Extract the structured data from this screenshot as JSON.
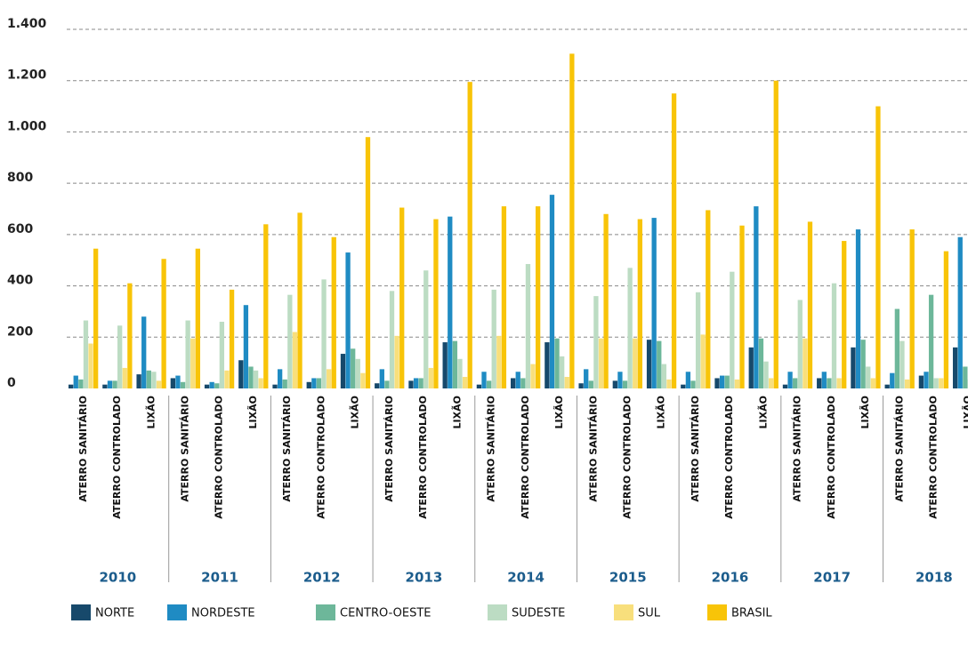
{
  "chart_data": {
    "type": "bar",
    "categories": [
      "ATERRO SANITÁRIO",
      "ATERRO CONTROLADO",
      "LIXÃO",
      "ATERRO SANITÁRIO",
      "ATERRO CONTROLADO",
      "LIXÃO",
      "ATERRO SANITÁRIO",
      "ATERRO CONTROLADO",
      "LIXÃO",
      "ATERRO SANITÁRIO",
      "ATERRO CONTROLADO",
      "LIXÃO",
      "ATERRO SANITÁRIO",
      "ATERRO CONTROLADO",
      "LIXÃO",
      "ATERRO SANITÁRIO",
      "ATERRO CONTROLADO",
      "LIXÃO",
      "ATERRO SANITÁRIO",
      "ATERRO CONTROLADO",
      "LIXÃO",
      "ATERRO SANITÁRIO",
      "ATERRO CONTROLADO",
      "LIXÃO",
      "ATERRO SANITÁRIO",
      "ATERRO CONTROLADO",
      "LIXÃO"
    ],
    "groups": [
      "2010",
      "2011",
      "2012",
      "2013",
      "2014",
      "2015",
      "2016",
      "2017",
      "2018"
    ],
    "series": [
      {
        "name": "NORTE",
        "color": "#17496b",
        "values": [
          15,
          15,
          55,
          40,
          15,
          110,
          15,
          25,
          135,
          20,
          30,
          180,
          15,
          40,
          180,
          20,
          30,
          190,
          15,
          40,
          160,
          15,
          40,
          160,
          15,
          50,
          160
        ]
      },
      {
        "name": "NORDESTE",
        "color": "#1f8bc3",
        "values": [
          50,
          30,
          280,
          50,
          25,
          325,
          75,
          40,
          530,
          75,
          40,
          670,
          65,
          65,
          755,
          75,
          65,
          665,
          65,
          50,
          710,
          65,
          65,
          620,
          60,
          65,
          590
        ]
      },
      {
        "name": "CENTRO-OESTE",
        "color": "#6db79a",
        "values": [
          35,
          30,
          70,
          25,
          20,
          85,
          35,
          40,
          155,
          30,
          40,
          185,
          30,
          40,
          195,
          30,
          30,
          185,
          30,
          50,
          195,
          40,
          40,
          190,
          310,
          365,
          85
        ]
      },
      {
        "name": "SUDESTE",
        "color": "#bcdcc3",
        "values": [
          265,
          245,
          65,
          265,
          260,
          70,
          365,
          425,
          115,
          380,
          460,
          115,
          385,
          485,
          125,
          360,
          470,
          95,
          375,
          455,
          105,
          345,
          410,
          85,
          185,
          40,
          35
        ]
      },
      {
        "name": "SUL",
        "color": "#f8df7c",
        "values": [
          175,
          80,
          30,
          195,
          70,
          40,
          220,
          75,
          60,
          205,
          80,
          45,
          205,
          95,
          45,
          195,
          195,
          35,
          210,
          35,
          40,
          195,
          40,
          40,
          35,
          40,
          175
        ]
      },
      {
        "name": "BRASIL",
        "color": "#f8c408",
        "values": [
          545,
          410,
          505,
          545,
          385,
          640,
          685,
          590,
          980,
          705,
          660,
          1195,
          710,
          710,
          1305,
          680,
          660,
          1150,
          695,
          635,
          1200,
          650,
          575,
          1100,
          620,
          535,
          null
        ]
      }
    ],
    "ylim": [
      0,
      1400
    ],
    "yticks": [
      0,
      {
        "value": 200,
        "label": "200"
      },
      {
        "value": 400,
        "label": "400"
      },
      {
        "value": 600,
        "label": "600"
      },
      {
        "value": 800,
        "label": "800"
      },
      {
        "value": 1000,
        "label": "1.000"
      },
      {
        "value": 1200,
        "label": "1.200"
      },
      {
        "value": 1400,
        "label": "1.400"
      }
    ],
    "grid": true,
    "legend": "bottom"
  }
}
